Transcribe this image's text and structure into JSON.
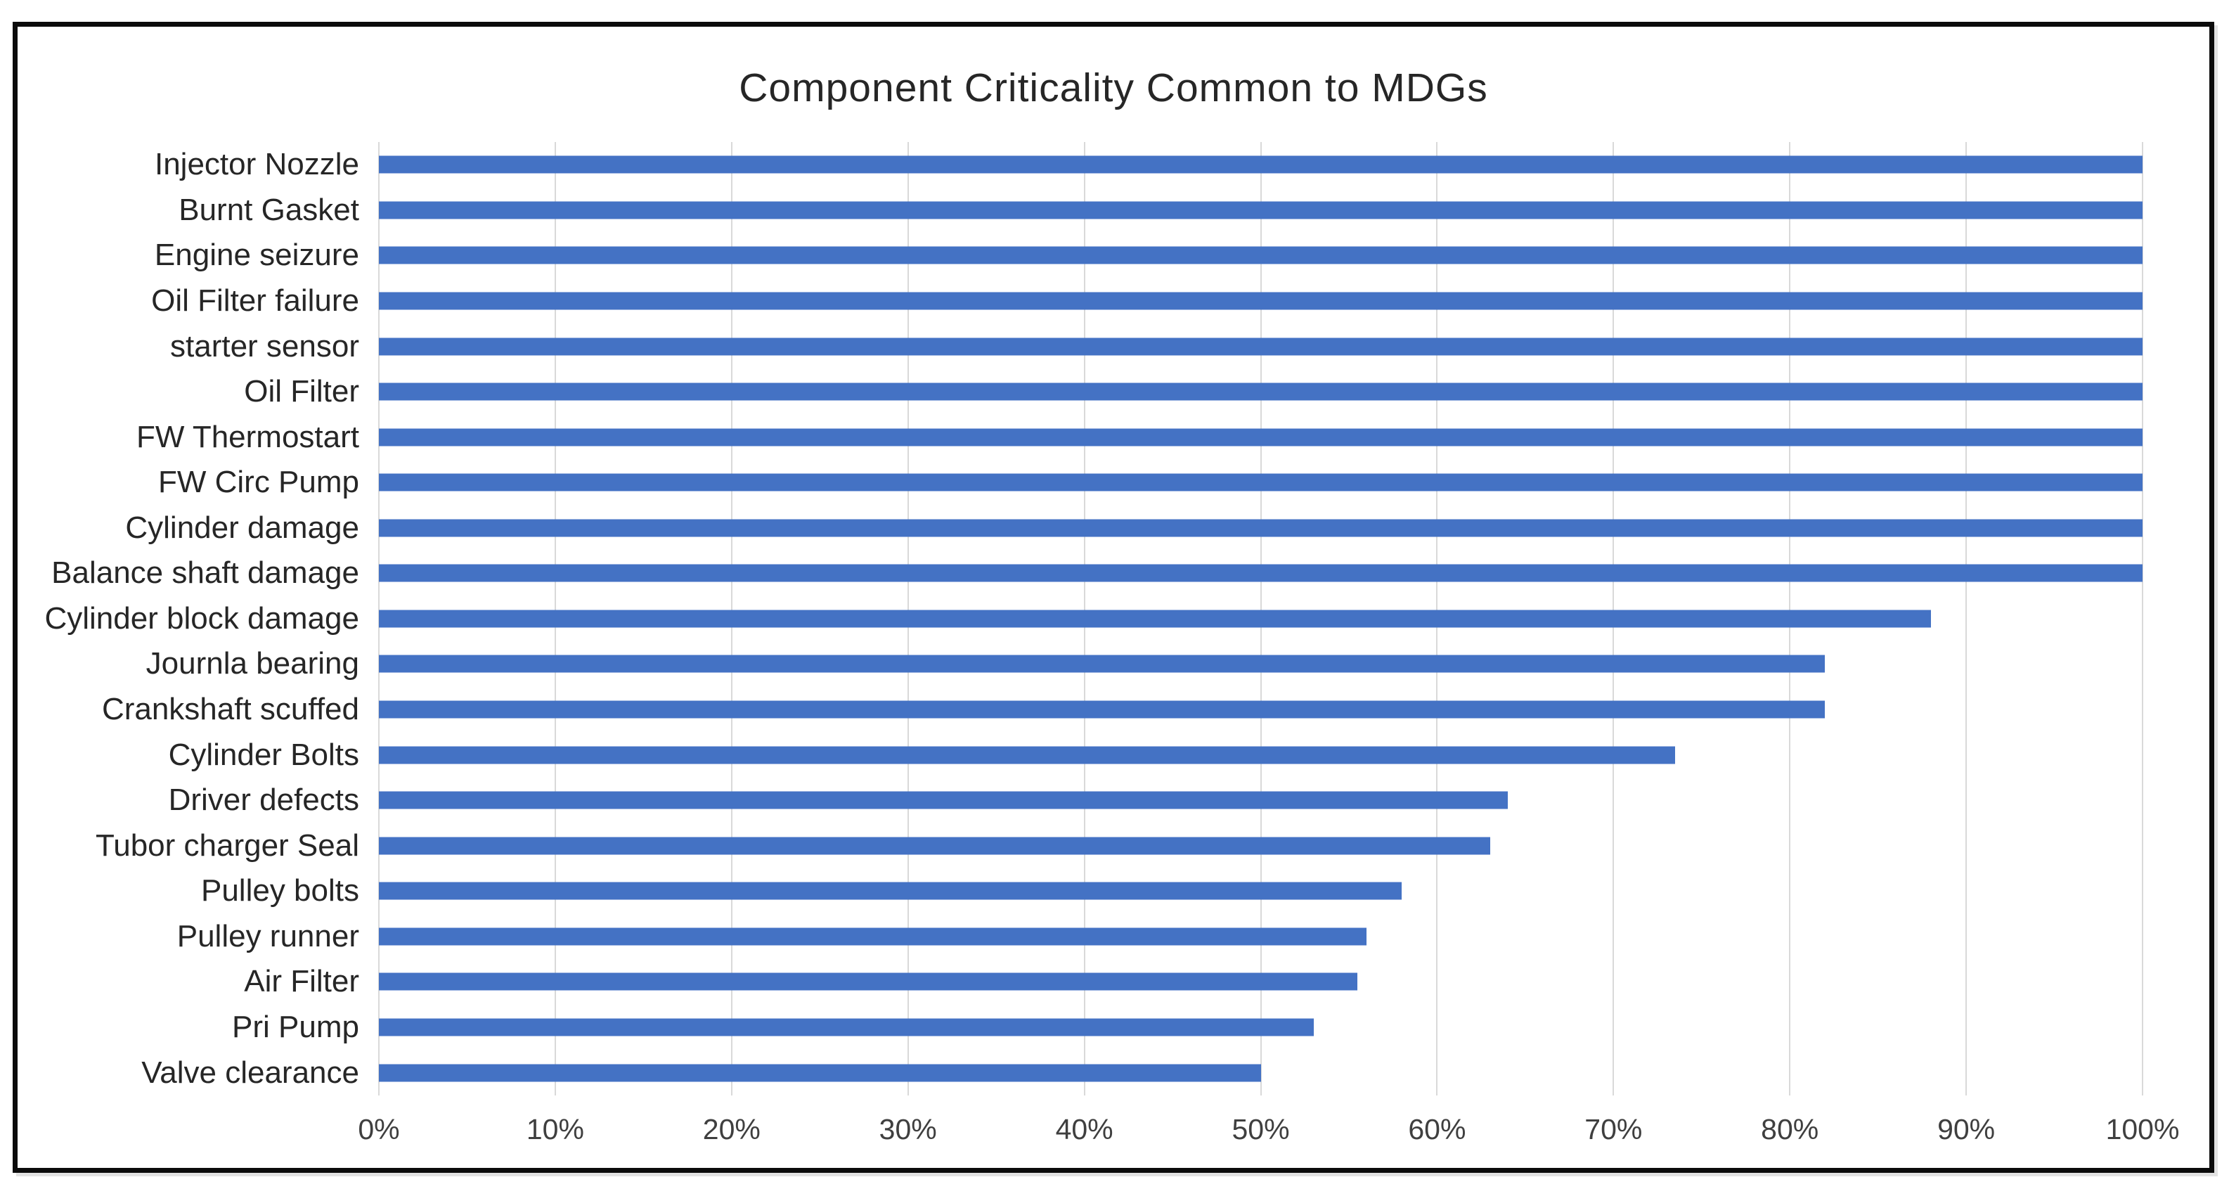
{
  "colors": {
    "bar": "#4472c4",
    "gridline": "#d9d9d9",
    "title_text": "#262626",
    "category_text": "#262626",
    "tick_text": "#3f3f3f",
    "border": "#0b0b0b",
    "background": "#ffffff"
  },
  "chart_data": {
    "type": "bar",
    "orientation": "horizontal",
    "title": "Component Criticality Common to MDGs",
    "xlabel": "",
    "ylabel": "",
    "xlim": [
      0,
      100
    ],
    "grid": true,
    "legend": false,
    "value_unit": "%",
    "categories": [
      "Injector Nozzle",
      "Burnt Gasket",
      "Engine seizure",
      "Oil Filter failure",
      "starter sensor",
      "Oil Filter",
      "FW Thermostart",
      "FW Circ Pump",
      "Cylinder damage",
      "Balance shaft damage",
      "Cylinder block damage",
      "Journla bearing",
      "Crankshaft scuffed",
      "Cylinder Bolts",
      "Driver defects",
      "Tubor charger Seal",
      "Pulley bolts",
      "Pulley runner",
      "Air Filter",
      "Pri Pump",
      "Valve clearance"
    ],
    "values": [
      100,
      100,
      100,
      100,
      100,
      100,
      100,
      100,
      100,
      100,
      88,
      82,
      82,
      73.5,
      64,
      63,
      58,
      56,
      55.5,
      53,
      50
    ],
    "x_ticks": [
      "0%",
      "10%",
      "20%",
      "30%",
      "40%",
      "50%",
      "60%",
      "70%",
      "80%",
      "90%",
      "100%"
    ],
    "x_tick_values": [
      0,
      10,
      20,
      30,
      40,
      50,
      60,
      70,
      80,
      90,
      100
    ]
  }
}
